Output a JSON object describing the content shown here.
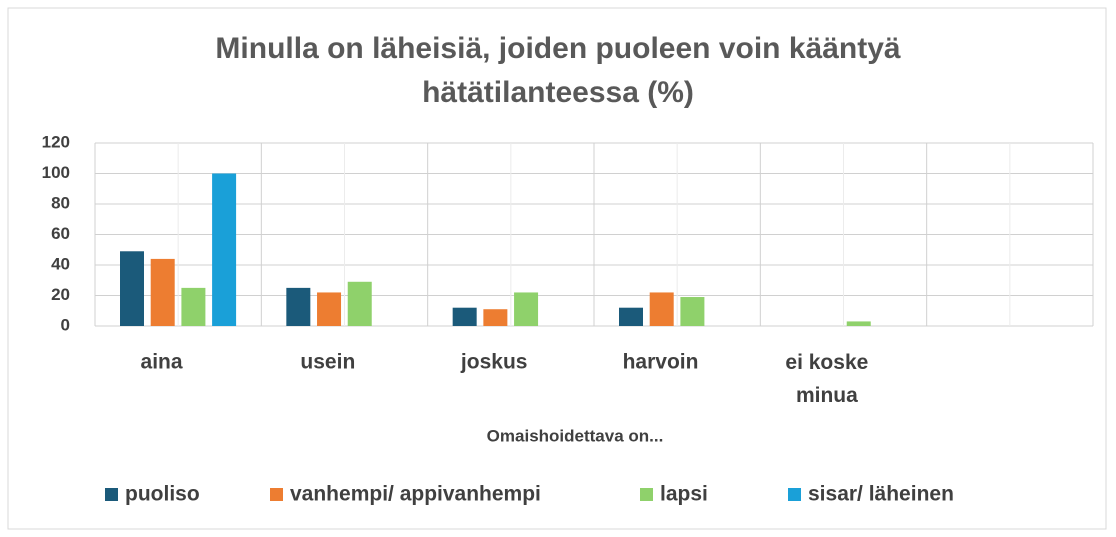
{
  "chart_data": {
    "type": "bar",
    "title": "Minulla on läheisiä, joiden puoleen voin kääntyä hätätilanteessa (%)",
    "x_label": "Omaishoidettava on...",
    "categories": [
      "aina",
      "usein",
      "joskus",
      "harvoin",
      "ei koske minua",
      null
    ],
    "series": [
      {
        "name": "puoliso",
        "color": "#1b5a7a",
        "values": [
          49,
          25,
          12,
          12,
          0,
          null
        ]
      },
      {
        "name": "vanhempi/ appivanhempi",
        "color": "#ed7d31",
        "values": [
          44,
          22,
          11,
          22,
          0,
          null
        ]
      },
      {
        "name": "lapsi",
        "color": "#8fd16b",
        "values": [
          25,
          29,
          22,
          19,
          3,
          null
        ]
      },
      {
        "name": "sisar/ läheinen",
        "color": "#1aa0d8",
        "values": [
          100,
          0,
          0,
          0,
          0,
          null
        ]
      }
    ],
    "ylim": [
      0,
      120
    ],
    "yticks": [
      0,
      20,
      40,
      60,
      80,
      100,
      120
    ],
    "grid": true,
    "legend": "bottom"
  }
}
